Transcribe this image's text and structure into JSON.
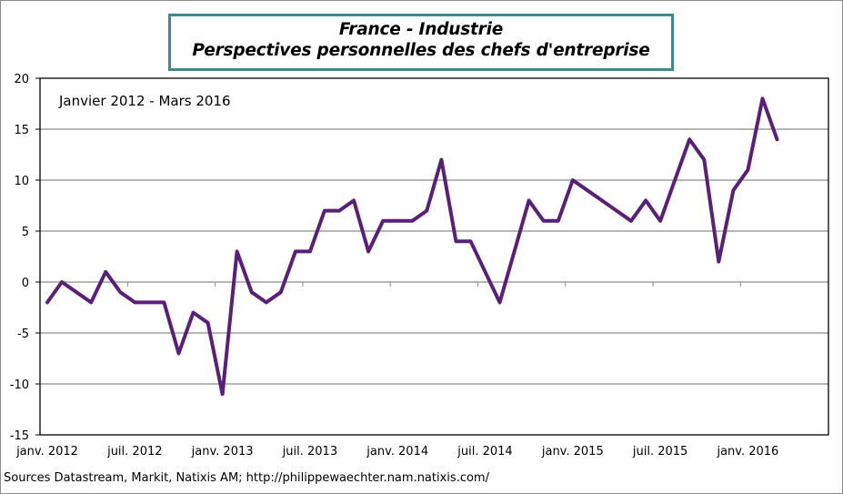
{
  "chart_data": {
    "type": "line",
    "title": "France - Industrie",
    "subtitle": "Perspectives personnelles des chefs d'entreprise",
    "annotation": "Janvier 2012 - Mars 2016",
    "xlabel": "",
    "ylabel": "",
    "ylim": [
      -15,
      20
    ],
    "yticks": [
      20,
      15,
      10,
      5,
      0,
      -5,
      -10,
      -15
    ],
    "ytick_labels": [
      "20",
      "15",
      "10",
      "5",
      "0",
      "-5",
      "-10",
      "-15"
    ],
    "xtick_labels": [
      "janv. 2012",
      "juil. 2012",
      "janv. 2013",
      "juil. 2013",
      "janv. 2014",
      "juil. 2014",
      "janv. 2015",
      "juil. 2015",
      "janv. 2016"
    ],
    "grid": true,
    "legend": "none",
    "series": [
      {
        "name": "Perspectives personnelles des chefs d'entreprise",
        "color": "#5a1f78",
        "start": "2012-01",
        "end": "2016-03",
        "frequency": "monthly",
        "values": [
          -2,
          0,
          -1,
          -2,
          1,
          -1,
          -2,
          -2,
          -2,
          -7,
          -3,
          -4,
          -11,
          3,
          -1,
          -2,
          -1,
          3,
          3,
          7,
          7,
          8,
          3,
          6,
          6,
          6,
          7,
          12,
          4,
          4,
          1,
          -2,
          3,
          8,
          6,
          6,
          10,
          9,
          8,
          7,
          6,
          8,
          6,
          10,
          14,
          12,
          2,
          9,
          11,
          18,
          14
        ]
      }
    ]
  },
  "colors": {
    "title_border": "#3e8a8a",
    "line": "#5a1f78",
    "grid": "#8c8c8c"
  },
  "footer": {
    "source": "Sources Datastream, Markit, Natixis AM;  http://philippewaechter.nam.natixis.com/"
  }
}
